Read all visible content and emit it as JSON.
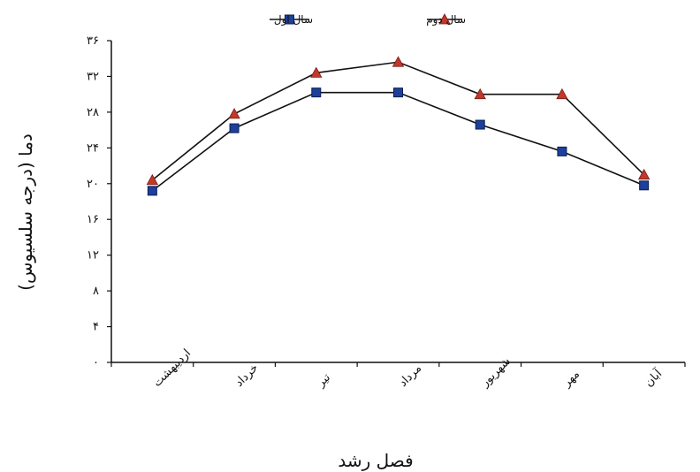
{
  "chart_data": {
    "type": "line",
    "xlabel": "فصل رشد",
    "ylabel": "دما (درجه سلسیوس)",
    "categories": [
      "اردیبهشت",
      "خرداد",
      "تیر",
      "مرداد",
      "شهریور",
      "مهر",
      "آبان"
    ],
    "y_ticks": [
      "۰",
      "۴",
      "۸",
      "۱۲",
      "۱۶",
      "۲۰",
      "۲۴",
      "۲۸",
      "۳۲",
      "۳۶"
    ],
    "ylim": [
      0,
      36
    ],
    "grid": false,
    "legend_position": "top-center",
    "series": [
      {
        "name": "سال اول",
        "values": [
          19.2,
          26.2,
          30.2,
          30.2,
          26.6,
          23.6,
          19.8
        ],
        "line_color": "#111111",
        "marker": "square",
        "marker_color": "#1e3f9a"
      },
      {
        "name": "سال دوم",
        "values": [
          20.4,
          27.8,
          32.4,
          33.6,
          30.0,
          30.0,
          21.0
        ],
        "line_color": "#111111",
        "marker": "triangle",
        "marker_color": "#c0392b"
      }
    ]
  }
}
